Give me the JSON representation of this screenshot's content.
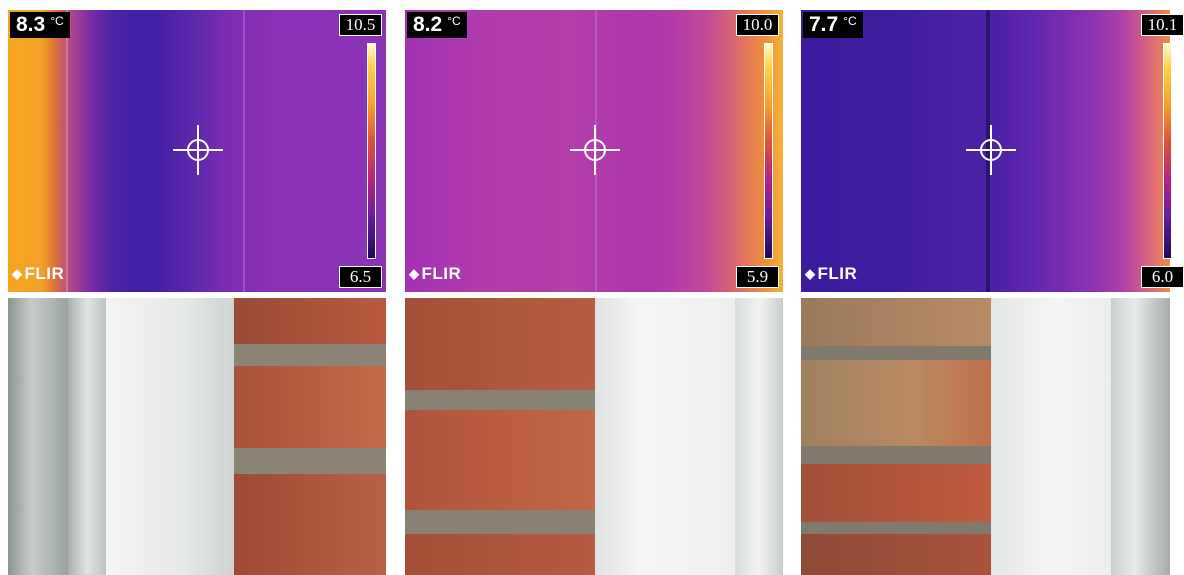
{
  "panels": [
    {
      "spot_temp": "8.3",
      "unit": "°C",
      "scale_max": "10.5",
      "scale_min": "6.5",
      "brand": "FLIR"
    },
    {
      "spot_temp": "8.2",
      "unit": "°C",
      "scale_max": "10.0",
      "scale_min": "5.9",
      "brand": "FLIR"
    },
    {
      "spot_temp": "7.7",
      "unit": "°C",
      "scale_max": "10.1",
      "scale_min": "6.0",
      "brand": "FLIR"
    }
  ],
  "colors": {
    "palette": "iron",
    "brick": "#b0503a",
    "mortar": "#8c8678",
    "frame": "#ecefed"
  }
}
